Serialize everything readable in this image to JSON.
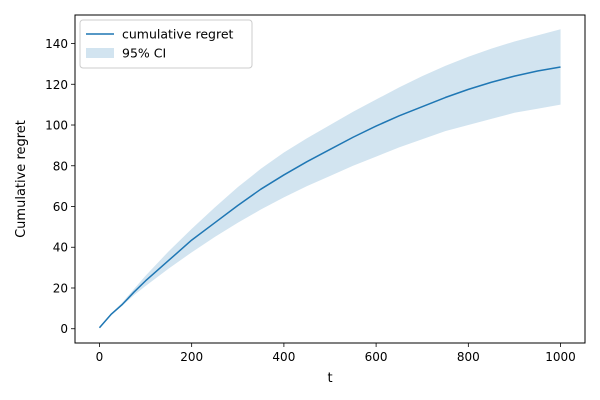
{
  "chart_data": {
    "type": "line",
    "title": "",
    "xlabel": "t",
    "ylabel": "Cumulative regret",
    "xlim": [
      -53,
      1053
    ],
    "ylim": [
      -7,
      154
    ],
    "xticks": [
      0,
      200,
      400,
      600,
      800,
      1000
    ],
    "yticks": [
      0,
      20,
      40,
      60,
      80,
      100,
      120,
      140
    ],
    "legend_position": "top-left",
    "grid": false,
    "colors": {
      "line": "#1f77b4",
      "band": "#1f77b4"
    },
    "series": [
      {
        "name": "cumulative regret",
        "kind": "line",
        "x": [
          0,
          25,
          50,
          75,
          100,
          150,
          200,
          250,
          300,
          350,
          400,
          450,
          500,
          550,
          600,
          650,
          700,
          750,
          800,
          850,
          900,
          950,
          1000
        ],
        "values": [
          0.5,
          7,
          12,
          18,
          23.5,
          33.5,
          43.5,
          52,
          60.5,
          68.5,
          75.5,
          82,
          88,
          94,
          99.5,
          104.5,
          109,
          113.5,
          117.5,
          121,
          124,
          126.5,
          128.5
        ]
      },
      {
        "name": "95% CI",
        "kind": "band",
        "x": [
          0,
          25,
          50,
          75,
          100,
          150,
          200,
          250,
          300,
          350,
          400,
          450,
          500,
          550,
          600,
          650,
          700,
          750,
          800,
          850,
          900,
          950,
          1000
        ],
        "lower": [
          0.5,
          6.5,
          11.5,
          16.5,
          21,
          29.5,
          37.5,
          45,
          52,
          58.5,
          64.5,
          70,
          75,
          80,
          84.5,
          89,
          93,
          97,
          100,
          103,
          106,
          108,
          110
        ],
        "upper": [
          0.5,
          7.5,
          13,
          19.5,
          26,
          38,
          49,
          59.5,
          69.5,
          78.5,
          86.5,
          93.5,
          100,
          106.5,
          112.5,
          118.5,
          124,
          129,
          133.5,
          137.5,
          141,
          144,
          147
        ]
      }
    ]
  }
}
